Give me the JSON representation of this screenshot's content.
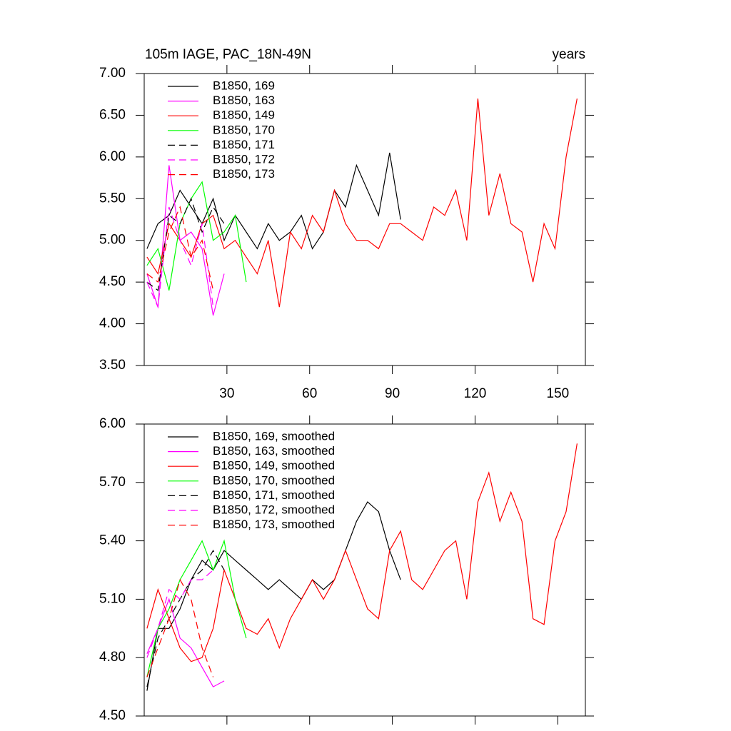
{
  "chart_data": [
    {
      "type": "line",
      "title": "105m IAGE, PAC_18N-49N",
      "right_title": "years",
      "x": [
        1,
        5,
        9,
        13,
        17,
        21,
        25,
        29,
        33,
        37,
        41,
        45,
        49,
        53,
        57,
        61,
        65,
        69,
        73,
        77,
        81,
        85,
        89,
        93,
        97,
        101,
        105,
        109,
        113,
        117,
        121,
        125,
        129,
        133,
        137,
        141,
        145,
        149,
        153,
        157
      ],
      "xlim": [
        0,
        160
      ],
      "xticks": [
        30,
        60,
        90,
        120,
        150
      ],
      "xtick_labels": true,
      "ylim": [
        3.5,
        7.0
      ],
      "yticks": [
        {
          "value": 3.5,
          "label": "3.50"
        },
        {
          "value": 4.0,
          "label": "4.00"
        },
        {
          "value": 4.5,
          "label": "4.50"
        },
        {
          "value": 5.0,
          "label": "5.00"
        },
        {
          "value": 5.5,
          "label": "5.50"
        },
        {
          "value": 6.0,
          "label": "6.00"
        },
        {
          "value": 6.5,
          "label": "6.50"
        },
        {
          "value": 7.0,
          "label": "7.00"
        }
      ],
      "series": [
        {
          "name": "B1850, 169",
          "color": "#000000",
          "dash": false,
          "values": [
            4.9,
            5.2,
            5.3,
            5.6,
            5.4,
            5.2,
            5.5,
            5.0,
            5.3,
            5.1,
            4.9,
            5.2,
            5.0,
            5.1,
            5.3,
            4.9,
            5.1,
            5.6,
            5.4,
            5.9,
            5.6,
            5.3,
            6.05,
            5.25,
            null,
            null,
            null,
            null,
            null,
            null,
            null,
            null,
            null,
            null,
            null,
            null,
            null,
            null,
            null,
            null
          ]
        },
        {
          "name": "B1850, 163",
          "color": "#ff00ff",
          "dash": false,
          "values": [
            4.6,
            4.2,
            5.9,
            5.0,
            5.1,
            4.9,
            4.1,
            4.6,
            null,
            null,
            null,
            null,
            null,
            null,
            null,
            null,
            null,
            null,
            null,
            null,
            null,
            null,
            null,
            null,
            null,
            null,
            null,
            null,
            null,
            null,
            null,
            null,
            null,
            null,
            null,
            null,
            null,
            null,
            null,
            null
          ]
        },
        {
          "name": "B1850, 149",
          "color": "#ff0000",
          "dash": false,
          "values": [
            4.8,
            4.6,
            5.2,
            5.0,
            4.8,
            5.2,
            5.3,
            4.9,
            5.0,
            4.8,
            4.6,
            5.0,
            4.2,
            5.1,
            4.9,
            5.3,
            5.1,
            5.6,
            5.2,
            5.0,
            5.0,
            4.9,
            5.2,
            5.2,
            5.1,
            5.0,
            5.4,
            5.3,
            5.6,
            5.0,
            6.7,
            5.3,
            5.8,
            5.2,
            5.1,
            4.5,
            5.2,
            4.9,
            6.0,
            6.7
          ]
        },
        {
          "name": "B1850, 170",
          "color": "#00ff00",
          "dash": false,
          "values": [
            4.7,
            4.9,
            4.4,
            5.2,
            5.5,
            5.7,
            5.0,
            5.1,
            5.3,
            4.5,
            null,
            null,
            null,
            null,
            null,
            null,
            null,
            null,
            null,
            null,
            null,
            null,
            null,
            null,
            null,
            null,
            null,
            null,
            null,
            null,
            null,
            null,
            null,
            null,
            null,
            null,
            null,
            null,
            null,
            null
          ]
        },
        {
          "name": "B1850, 171",
          "color": "#000000",
          "dash": true,
          "values": [
            4.5,
            4.4,
            5.3,
            5.2,
            5.5,
            5.1,
            5.4,
            5.2,
            null,
            null,
            null,
            null,
            null,
            null,
            null,
            null,
            null,
            null,
            null,
            null,
            null,
            null,
            null,
            null,
            null,
            null,
            null,
            null,
            null,
            null,
            null,
            null,
            null,
            null,
            null,
            null,
            null,
            null,
            null,
            null
          ]
        },
        {
          "name": "B1850, 172",
          "color": "#ff00ff",
          "dash": true,
          "values": [
            4.5,
            4.2,
            5.4,
            5.0,
            4.7,
            5.2,
            4.2,
            null,
            null,
            null,
            null,
            null,
            null,
            null,
            null,
            null,
            null,
            null,
            null,
            null,
            null,
            null,
            null,
            null,
            null,
            null,
            null,
            null,
            null,
            null,
            null,
            null,
            null,
            null,
            null,
            null,
            null,
            null,
            null,
            null
          ]
        },
        {
          "name": "B1850, 173",
          "color": "#ff0000",
          "dash": true,
          "values": [
            4.6,
            4.5,
            5.1,
            5.4,
            4.8,
            5.0,
            4.4,
            null,
            null,
            null,
            null,
            null,
            null,
            null,
            null,
            null,
            null,
            null,
            null,
            null,
            null,
            null,
            null,
            null,
            null,
            null,
            null,
            null,
            null,
            null,
            null,
            null,
            null,
            null,
            null,
            null,
            null,
            null,
            null,
            null
          ]
        }
      ]
    },
    {
      "type": "line",
      "x": [
        1,
        5,
        9,
        13,
        17,
        21,
        25,
        29,
        33,
        37,
        41,
        45,
        49,
        53,
        57,
        61,
        65,
        69,
        73,
        77,
        81,
        85,
        89,
        93,
        97,
        101,
        105,
        109,
        113,
        117,
        121,
        125,
        129,
        133,
        137,
        141,
        145,
        149,
        153,
        157
      ],
      "xlim": [
        0,
        160
      ],
      "xticks": [
        30,
        60,
        90,
        120,
        150
      ],
      "xtick_labels": false,
      "ylim": [
        4.5,
        6.0
      ],
      "yticks": [
        {
          "value": 4.5,
          "label": "4.50"
        },
        {
          "value": 4.8,
          "label": "4.80"
        },
        {
          "value": 5.1,
          "label": "5.10"
        },
        {
          "value": 5.4,
          "label": "5.40"
        },
        {
          "value": 5.7,
          "label": "5.70"
        },
        {
          "value": 6.0,
          "label": "6.00"
        }
      ],
      "series": [
        {
          "name": "B1850, 169, smoothed",
          "color": "#000000",
          "dash": false,
          "values": [
            4.63,
            4.95,
            4.95,
            5.05,
            5.2,
            5.3,
            5.25,
            5.35,
            5.3,
            5.25,
            5.2,
            5.15,
            5.2,
            5.15,
            5.1,
            5.2,
            5.15,
            5.2,
            5.35,
            5.5,
            5.6,
            5.55,
            5.35,
            5.2,
            null,
            null,
            null,
            null,
            null,
            null,
            null,
            null,
            null,
            null,
            null,
            null,
            null,
            null,
            null,
            null
          ]
        },
        {
          "name": "B1850, 163, smoothed",
          "color": "#ff00ff",
          "dash": false,
          "values": [
            4.82,
            4.95,
            5.1,
            4.9,
            4.85,
            4.75,
            4.65,
            4.68,
            null,
            null,
            null,
            null,
            null,
            null,
            null,
            null,
            null,
            null,
            null,
            null,
            null,
            null,
            null,
            null,
            null,
            null,
            null,
            null,
            null,
            null,
            null,
            null,
            null,
            null,
            null,
            null,
            null,
            null,
            null,
            null
          ]
        },
        {
          "name": "B1850, 149, smoothed",
          "color": "#ff0000",
          "dash": false,
          "values": [
            4.95,
            5.15,
            5.0,
            4.85,
            4.78,
            4.8,
            4.95,
            5.25,
            5.1,
            4.95,
            4.92,
            5.0,
            4.85,
            5.0,
            5.1,
            5.2,
            5.1,
            5.2,
            5.35,
            5.2,
            5.05,
            5.0,
            5.35,
            5.45,
            5.2,
            5.15,
            5.25,
            5.35,
            5.4,
            5.1,
            5.6,
            5.75,
            5.5,
            5.65,
            5.5,
            5.0,
            4.97,
            5.4,
            5.55,
            5.9
          ]
        },
        {
          "name": "B1850, 170, smoothed",
          "color": "#00ff00",
          "dash": false,
          "values": [
            4.7,
            4.95,
            5.05,
            5.2,
            5.3,
            5.4,
            5.25,
            5.4,
            5.1,
            4.9,
            null,
            null,
            null,
            null,
            null,
            null,
            null,
            null,
            null,
            null,
            null,
            null,
            null,
            null,
            null,
            null,
            null,
            null,
            null,
            null,
            null,
            null,
            null,
            null,
            null,
            null,
            null,
            null,
            null,
            null
          ]
        },
        {
          "name": "B1850, 171, smoothed",
          "color": "#000000",
          "dash": true,
          "values": [
            4.65,
            4.9,
            5.0,
            5.1,
            5.2,
            5.25,
            5.35,
            5.25,
            null,
            null,
            null,
            null,
            null,
            null,
            null,
            null,
            null,
            null,
            null,
            null,
            null,
            null,
            null,
            null,
            null,
            null,
            null,
            null,
            null,
            null,
            null,
            null,
            null,
            null,
            null,
            null,
            null,
            null,
            null,
            null
          ]
        },
        {
          "name": "B1850, 172, smoothed",
          "color": "#ff00ff",
          "dash": true,
          "values": [
            4.8,
            4.95,
            5.15,
            5.1,
            5.2,
            5.2,
            5.25,
            null,
            null,
            null,
            null,
            null,
            null,
            null,
            null,
            null,
            null,
            null,
            null,
            null,
            null,
            null,
            null,
            null,
            null,
            null,
            null,
            null,
            null,
            null,
            null,
            null,
            null,
            null,
            null,
            null,
            null,
            null,
            null,
            null
          ]
        },
        {
          "name": "B1850, 173, smoothed",
          "color": "#ff0000",
          "dash": true,
          "values": [
            4.7,
            4.85,
            5.0,
            5.2,
            5.1,
            4.85,
            4.7,
            null,
            null,
            null,
            null,
            null,
            null,
            null,
            null,
            null,
            null,
            null,
            null,
            null,
            null,
            null,
            null,
            null,
            null,
            null,
            null,
            null,
            null,
            null,
            null,
            null,
            null,
            null,
            null,
            null,
            null,
            null,
            null,
            null
          ]
        }
      ]
    }
  ]
}
